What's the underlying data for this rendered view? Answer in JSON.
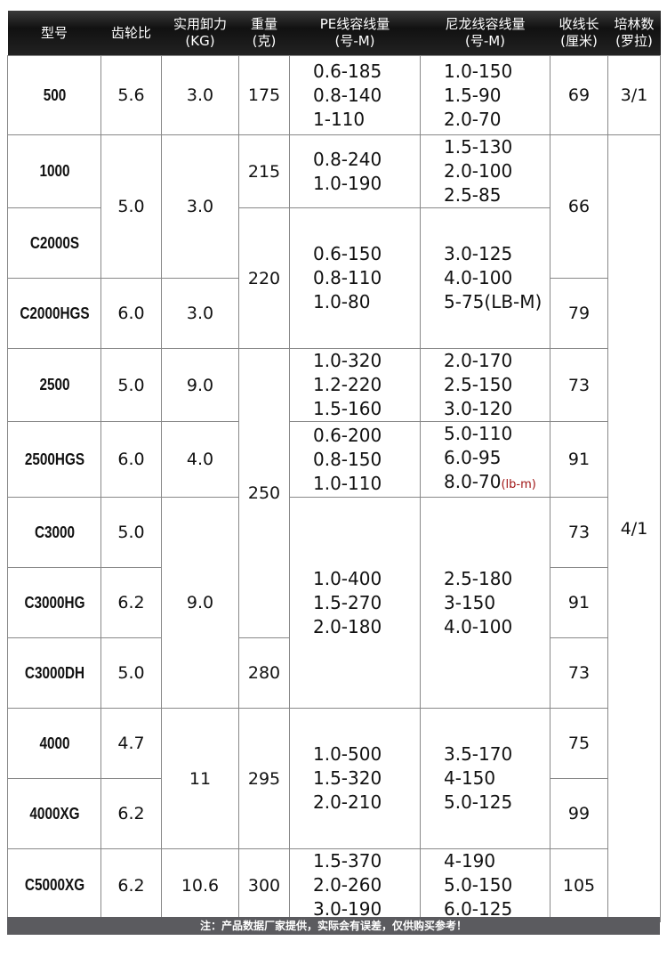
{
  "headers": [
    {
      "l1": "型号",
      "l2": ""
    },
    {
      "l1": "齿轮比",
      "l2": ""
    },
    {
      "l1": "实用卸力",
      "l2": "(KG)"
    },
    {
      "l1": "重量",
      "l2": "(克)"
    },
    {
      "l1": "PE线容线量",
      "l2": "(号-M)"
    },
    {
      "l1": "尼龙线容线量",
      "l2": "(号-M)"
    },
    {
      "l1": "收线长",
      "l2": "(厘米)"
    },
    {
      "l1": "培林数",
      "l2": "(罗拉)"
    }
  ],
  "rows": [
    {
      "model": "500",
      "gear": {
        "v": "5.6",
        "span": 1
      },
      "drag": {
        "v": "3.0",
        "span": 1
      },
      "weight": {
        "v": "175",
        "span": 1
      },
      "pe": {
        "v": [
          "0.6-185",
          "0.8-140",
          "1-110"
        ],
        "span": 1
      },
      "nylon": {
        "v": [
          "1.0-150",
          "1.5-90",
          "2.0-70"
        ],
        "span": 1
      },
      "length": {
        "v": "69",
        "span": 1
      },
      "bearing": {
        "v": "3/1",
        "span": 1
      }
    },
    {
      "model": "1000",
      "gear": {
        "v": "5.0",
        "span": 2
      },
      "drag": {
        "v": "3.0",
        "span": 2
      },
      "weight": {
        "v": "215",
        "span": 1
      },
      "pe": {
        "v": [
          "0.8-240",
          "1.0-190"
        ],
        "span": 1
      },
      "nylon": {
        "v": [
          "1.5-130",
          "2.0-100",
          "2.5-85"
        ],
        "span": 1
      },
      "length": {
        "v": "66",
        "span": 2
      },
      "bearing": {
        "v": "4/1",
        "span": 11
      }
    },
    {
      "model": "C2000S",
      "weight": {
        "v": "220",
        "span": 2
      },
      "pe": {
        "v": [
          "0.6-150",
          "0.8-110",
          "1.0-80"
        ],
        "span": 2
      },
      "nylon": {
        "v": [
          "3.0-125",
          "4.0-100",
          "5-75(LB-M)"
        ],
        "span": 2
      }
    },
    {
      "model": "C2000HGS",
      "gear": {
        "v": "6.0",
        "span": 1
      },
      "drag": {
        "v": "3.0",
        "span": 1
      },
      "length": {
        "v": "79",
        "span": 1
      }
    },
    {
      "model": "2500",
      "gear": {
        "v": "5.0",
        "span": 1
      },
      "drag": {
        "v": "9.0",
        "span": 1
      },
      "weight": {
        "v": "250",
        "span": 4
      },
      "pe": {
        "v": [
          "1.0-320",
          "1.2-220",
          "1.5-160"
        ],
        "span": 1
      },
      "nylon": {
        "v": [
          "2.0-170",
          "2.5-150",
          "3.0-120"
        ],
        "span": 1
      },
      "length": {
        "v": "73",
        "span": 1
      }
    },
    {
      "model": "2500HGS",
      "gear": {
        "v": "6.0",
        "span": 1
      },
      "drag": {
        "v": "4.0",
        "span": 1
      },
      "pe": {
        "v": [
          "0.6-200",
          "0.8-150",
          "1.0-110"
        ],
        "span": 1
      },
      "nylon": {
        "v": [
          "5.0-110",
          "6.0-95",
          "8.0-70"
        ],
        "suffix": "(lb-m)",
        "span": 1
      },
      "length": {
        "v": "91",
        "span": 1
      }
    },
    {
      "model": "C3000",
      "gear": {
        "v": "5.0",
        "span": 1
      },
      "drag": {
        "v": "9.0",
        "span": 3
      },
      "pe": {
        "v": [
          "1.0-400",
          "1.5-270",
          "2.0-180"
        ],
        "span": 3
      },
      "nylon": {
        "v": [
          "2.5-180",
          "3-150",
          "4.0-100"
        ],
        "span": 3
      },
      "length": {
        "v": "73",
        "span": 1
      }
    },
    {
      "model": "C3000HG",
      "gear": {
        "v": "6.2",
        "span": 1
      },
      "length": {
        "v": "91",
        "span": 1
      }
    },
    {
      "model": "C3000DH",
      "gear": {
        "v": "5.0",
        "span": 1
      },
      "weight": {
        "v": "280",
        "span": 1
      },
      "length": {
        "v": "73",
        "span": 1
      }
    },
    {
      "model": "4000",
      "gear": {
        "v": "4.7",
        "span": 1
      },
      "drag": {
        "v": "11",
        "span": 2
      },
      "weight": {
        "v": "295",
        "span": 2
      },
      "pe": {
        "v": [
          "1.0-500",
          "1.5-320",
          "2.0-210"
        ],
        "span": 2
      },
      "nylon": {
        "v": [
          "3.5-170",
          "4-150",
          "5.0-125"
        ],
        "span": 2
      },
      "length": {
        "v": "75",
        "span": 1
      }
    },
    {
      "model": "4000XG",
      "gear": {
        "v": "6.2",
        "span": 1
      },
      "length": {
        "v": "99",
        "span": 1
      }
    },
    {
      "model": "C5000XG",
      "gear": {
        "v": "6.2",
        "span": 1
      },
      "drag": {
        "v": "10.6",
        "span": 1
      },
      "weight": {
        "v": "300",
        "span": 1
      },
      "pe": {
        "v": [
          "1.5-370",
          "2.0-260",
          "3.0-190"
        ],
        "span": 1
      },
      "nylon": {
        "v": [
          "4-190",
          "5.0-150",
          "6.0-125"
        ],
        "span": 1
      },
      "length": {
        "v": "105",
        "span": 1
      }
    }
  ],
  "footer": "注：产品数据厂家提供，实际会有误差，仅供购买参考！",
  "colors": {
    "header_bg": "#111111",
    "footer_bg": "#5b5b5f",
    "note_red": "#a01515"
  }
}
